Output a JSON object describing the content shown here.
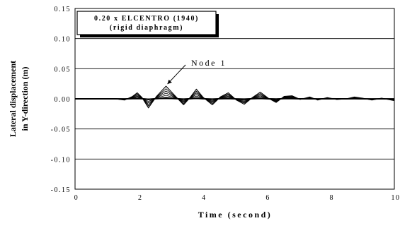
{
  "chart_data": {
    "type": "line",
    "title": "0.20 x ELCENTRO (1940)",
    "subtitle": "(rigid diaphragm)",
    "xlabel": "Time (second)",
    "ylabel_line1": "Lateral displacement",
    "ylabel_line2": "in Y-direction (m)",
    "xlim": [
      0,
      10
    ],
    "ylim": [
      -0.15,
      0.15
    ],
    "x_ticks": [
      "0",
      "2",
      "4",
      "6",
      "8",
      "10"
    ],
    "y_ticks": [
      "0.15",
      "0.10",
      "0.05",
      "0.00",
      "-0.05",
      "-0.10",
      "-0.15"
    ],
    "grid": "horizontal",
    "annotation": "Node 1",
    "annotation_point": {
      "x": 2.85,
      "y": 0.021
    },
    "series": [
      {
        "x": [
          0,
          1.25,
          1.55,
          1.8,
          1.95,
          2.1,
          2.3,
          2.55,
          2.85,
          3.15,
          3.4,
          3.6,
          3.8,
          4.0,
          4.3,
          4.55,
          4.8,
          5.05,
          5.3,
          5.55,
          5.8,
          6.05,
          6.3,
          6.55,
          6.8,
          7.05,
          7.35,
          7.6,
          7.9,
          8.2,
          8.5,
          8.75,
          9.0,
          9.3,
          9.6,
          10.0
        ],
        "values": [
          0,
          0,
          -0.002,
          0.004,
          0.01,
          0.002,
          -0.015,
          0.004,
          0.021,
          0.004,
          -0.01,
          0.002,
          0.016,
          0.003,
          -0.01,
          0.003,
          0.01,
          -0.002,
          -0.009,
          0.002,
          0.011,
          0.001,
          -0.006,
          0.004,
          0.005,
          -0.001,
          0.003,
          -0.002,
          0.002,
          -0.001,
          0.0,
          0.003,
          0.001,
          -0.002,
          0.001,
          -0.003
        ]
      }
    ]
  }
}
